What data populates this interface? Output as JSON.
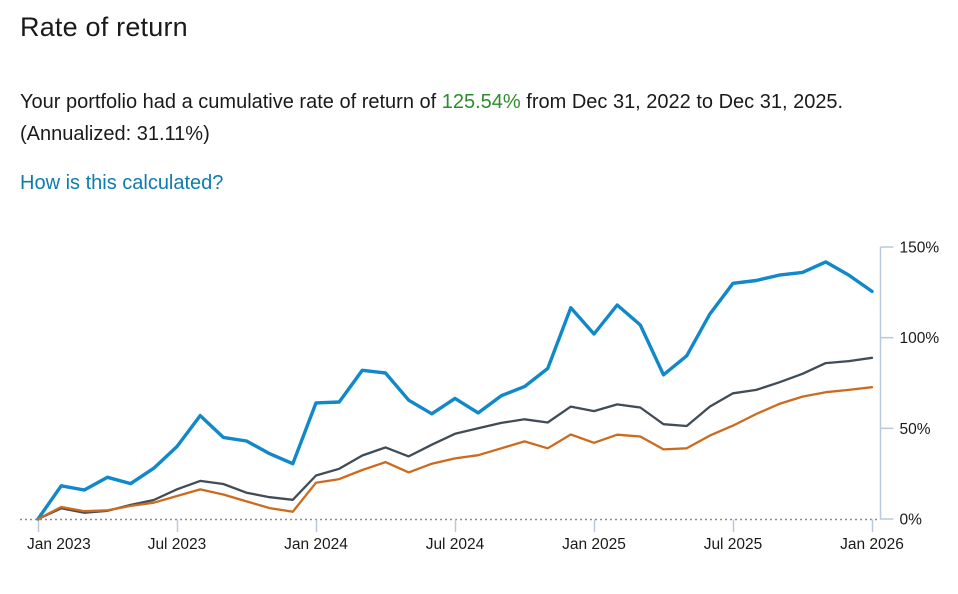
{
  "page": {
    "title": "Rate of return",
    "summary": {
      "prefix": "Your portfolio had a cumulative rate of return of ",
      "highlight_value": "125.54%",
      "suffix": " from Dec 31, 2022 to Dec 31, 2025. (Annualized: 31.11%)",
      "highlight_color": "#2e8b2e"
    },
    "link": {
      "label": "How is this calculated?",
      "color": "#0f7cac"
    }
  },
  "chart_data": {
    "type": "line",
    "title": "",
    "xlabel": "",
    "ylabel": "",
    "legend": "none",
    "grid": "off",
    "ylim": [
      0,
      150
    ],
    "y_ticks": [
      0,
      50,
      100,
      150
    ],
    "y_tick_suffix": "%",
    "x_months_total": 36,
    "x_tick_labels": [
      "Jan 2023",
      "Jul 2023",
      "Jan 2024",
      "Jul 2024",
      "Jan 2025",
      "Jul 2025",
      "Jan 2026"
    ],
    "x_tick_month_index": [
      0,
      6,
      12,
      18,
      24,
      30,
      36
    ],
    "axis_color": "#b9c8dc",
    "tick_label_color": "#1a1a1a",
    "baseline": {
      "value": 0,
      "style": "dotted",
      "color": "#8c8c8c"
    },
    "series": [
      {
        "name": "portfolio",
        "color": "#1088ca",
        "stroke_width": 3.4,
        "values": [
          0,
          18.3,
          16.0,
          23.0,
          19.5,
          28.0,
          40.0,
          57.0,
          45.0,
          43.0,
          36.0,
          30.5,
          64.0,
          64.5,
          82.0,
          80.5,
          65.5,
          58.0,
          66.5,
          58.5,
          68.0,
          73.0,
          83.0,
          116.5,
          102.0,
          118.0,
          107.0,
          79.5,
          90.0,
          113.0,
          130.0,
          131.5,
          134.5,
          136.0,
          141.8,
          134.5,
          125.54
        ]
      },
      {
        "name": "benchmark-1",
        "color": "#414c56",
        "stroke_width": 2.3,
        "values": [
          0,
          5.9,
          3.5,
          4.5,
          7.8,
          10.5,
          16.4,
          21.0,
          19.3,
          14.5,
          12.0,
          10.6,
          24.0,
          27.7,
          35.0,
          39.5,
          34.5,
          41.0,
          47.0,
          50.0,
          53.0,
          55.0,
          53.2,
          62.0,
          59.5,
          63.2,
          61.5,
          52.3,
          51.3,
          62.0,
          69.3,
          71.2,
          75.4,
          80.1,
          86.0,
          87.1,
          88.9
        ]
      },
      {
        "name": "benchmark-2",
        "color": "#cc6b1e",
        "stroke_width": 2.3,
        "values": [
          0,
          6.6,
          4.3,
          4.8,
          7.2,
          9.0,
          12.7,
          16.3,
          13.5,
          9.7,
          6.0,
          4.0,
          20.0,
          22.0,
          27.0,
          31.4,
          25.7,
          30.5,
          33.4,
          35.2,
          39.0,
          42.8,
          39.0,
          46.6,
          42.0,
          46.5,
          45.5,
          38.4,
          39.0,
          46.0,
          51.5,
          57.9,
          63.5,
          67.5,
          69.9,
          71.2,
          72.7
        ]
      }
    ]
  }
}
